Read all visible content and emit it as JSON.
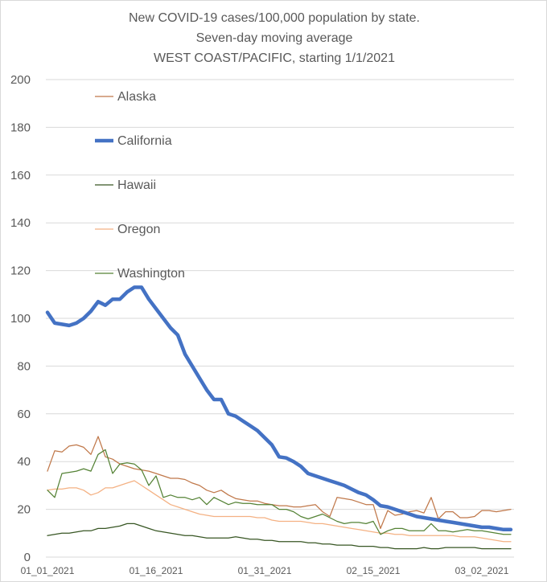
{
  "chart_data": {
    "type": "line",
    "title": [
      "New COVID-19 cases/100,000 population by state.",
      "Seven-day moving average",
      "WEST COAST/PACIFIC, starting 1/1/2021"
    ],
    "xlabel": "",
    "ylabel": "",
    "ylim": [
      0,
      200
    ],
    "yticks": [
      0,
      20,
      40,
      60,
      80,
      100,
      120,
      140,
      160,
      180,
      200
    ],
    "x_start": "2021-01-01",
    "x_end": "2021-03-07",
    "xtick_labels": [
      "01_01_2021",
      "01_16_2021",
      "01_31_2021",
      "02_15_2021",
      "03_02_2021"
    ],
    "grid": true,
    "legend_position": "left, inside plot",
    "series": [
      {
        "name": "Alaska",
        "color": "#C0784A",
        "line_width": "thin",
        "values": [
          36,
          44.5,
          44,
          46.5,
          47,
          46,
          43,
          50.5,
          42,
          41,
          39,
          38,
          37,
          36.5,
          36,
          35,
          34,
          33,
          33,
          32.5,
          31,
          30,
          28,
          27,
          28,
          26,
          24.5,
          24,
          23.5,
          23.5,
          22.5,
          22,
          21.5,
          21.5,
          21,
          21,
          21.5,
          22,
          19,
          17,
          25,
          24.5,
          24,
          23,
          22,
          22,
          12,
          19.5,
          17.5,
          18,
          19,
          19.5,
          18.5,
          25,
          16,
          19,
          19,
          16.5,
          16.5,
          17,
          19.5,
          19.5,
          19,
          19.5,
          20
        ]
      },
      {
        "name": "California",
        "color": "#4472C4",
        "line_width": "thick",
        "values": [
          102.5,
          98,
          97.5,
          97,
          98,
          100,
          103,
          107,
          105.5,
          108,
          108,
          111,
          113,
          113,
          108,
          104,
          100,
          96,
          93,
          85,
          80,
          75,
          70,
          66,
          66,
          60,
          59,
          57,
          55,
          53,
          50,
          47,
          42,
          41.5,
          40,
          38,
          35,
          34,
          33,
          32,
          31,
          30,
          28.5,
          27,
          26,
          24,
          21.5,
          21,
          20,
          19,
          18,
          17,
          16.5,
          16,
          15.5,
          15,
          14.5,
          14,
          13.5,
          13,
          12.5,
          12.5,
          12,
          11.5,
          11.5
        ]
      },
      {
        "name": "Hawaii",
        "color": "#375623",
        "line_width": "thin",
        "values": [
          9,
          9.5,
          10,
          10,
          10.5,
          11,
          11,
          12,
          12,
          12.5,
          13,
          14,
          14,
          13,
          12,
          11,
          10.5,
          10,
          9.5,
          9,
          9,
          8.5,
          8,
          8,
          8,
          8,
          8.5,
          8,
          7.5,
          7.5,
          7,
          7,
          6.5,
          6.5,
          6.5,
          6.5,
          6,
          6,
          5.5,
          5.5,
          5,
          5,
          5,
          4.5,
          4.5,
          4.5,
          4,
          4,
          3.5,
          3.5,
          3.5,
          3.5,
          4,
          3.5,
          3.5,
          4,
          4,
          4,
          4,
          4,
          3.5,
          3.5,
          3.5,
          3.5,
          3.5
        ]
      },
      {
        "name": "Oregon",
        "color": "#F4B183",
        "line_width": "thin",
        "values": [
          28,
          28.5,
          28.5,
          29,
          29,
          28,
          26,
          27,
          29,
          29,
          30,
          31,
          32,
          30,
          28,
          26,
          24,
          22,
          21,
          20,
          19,
          18,
          17.5,
          17,
          17,
          17,
          17,
          17,
          17,
          16.5,
          16.5,
          15.5,
          15,
          15,
          15,
          15,
          14.5,
          14,
          14,
          13.5,
          13,
          12.5,
          12,
          11.5,
          11,
          10.5,
          10,
          10,
          9.5,
          9.5,
          9,
          9,
          9,
          9,
          9,
          9,
          9,
          8.5,
          8.5,
          8.5,
          8,
          7.5,
          7,
          6.5,
          6.5
        ]
      },
      {
        "name": "Washington",
        "color": "#548235",
        "line_width": "thin",
        "values": [
          28,
          25,
          35,
          35.5,
          36,
          37,
          36,
          43,
          45,
          35,
          39,
          39.5,
          39,
          36.5,
          30,
          34,
          25,
          26,
          25,
          25,
          24,
          25,
          22,
          25,
          23.5,
          22,
          23,
          22.5,
          22.5,
          22,
          22,
          22,
          20,
          20,
          19,
          17,
          16,
          17,
          18,
          16.5,
          15,
          14,
          14.5,
          14.5,
          14,
          15,
          9.5,
          11,
          12,
          12,
          11,
          11,
          11,
          14,
          11,
          11,
          10.5,
          11,
          11.5,
          11,
          11,
          10.5,
          10,
          9.5,
          9.5
        ]
      }
    ]
  }
}
